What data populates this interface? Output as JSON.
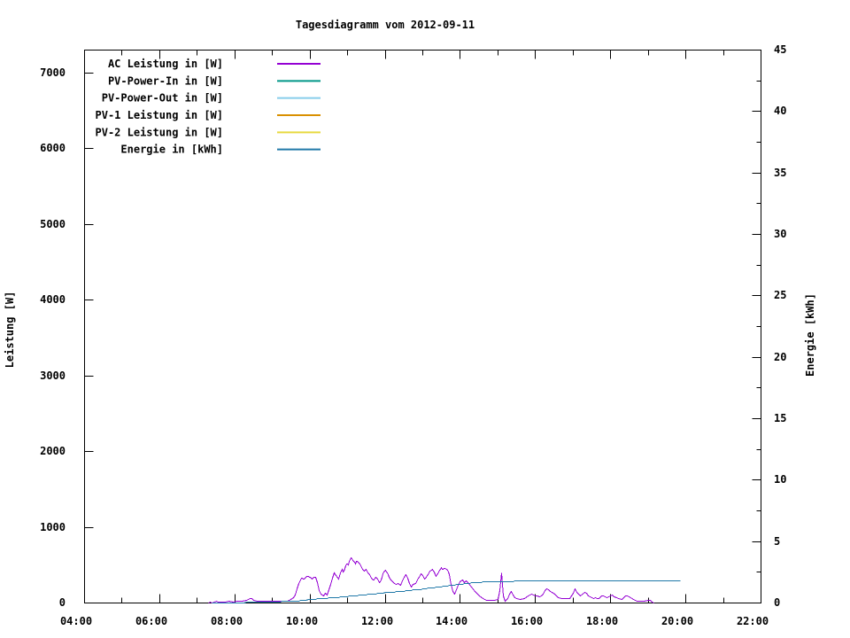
{
  "title": "Tagesdiagramm vom 2012-09-11",
  "axes": {
    "x": {
      "tick_labels": [
        "04:00",
        "06:00",
        "08:00",
        "10:00",
        "12:00",
        "14:00",
        "16:00",
        "18:00",
        "20:00",
        "22:00"
      ],
      "range_hours": [
        4,
        22
      ],
      "major_step_hours": 2,
      "minor_step_hours": 1
    },
    "y_left": {
      "label": "Leistung [W]",
      "tick_values": [
        0,
        1000,
        2000,
        3000,
        4000,
        5000,
        6000,
        7000
      ],
      "range": [
        0,
        7300
      ]
    },
    "y_right": {
      "label": "Energie [kWh]",
      "tick_values": [
        0,
        5,
        10,
        15,
        20,
        25,
        30,
        35,
        40,
        45
      ],
      "minor_step": 2.5,
      "range": [
        0,
        45
      ]
    }
  },
  "legend": [
    {
      "label": "AC Leistung in [W]",
      "color": "#9400d3"
    },
    {
      "label": "PV-Power-In in [W]",
      "color": "#009688"
    },
    {
      "label": "PV-Power-Out in [W]",
      "color": "#87ceeb"
    },
    {
      "label": "PV-1 Leistung in [W]",
      "color": "#d99000"
    },
    {
      "label": "PV-2 Leistung in [W]",
      "color": "#e8d940"
    },
    {
      "label": "Energie in [kWh]",
      "color": "#1f78a8"
    }
  ],
  "chart_data": {
    "type": "line",
    "title": "Tagesdiagramm vom 2012-09-11",
    "xlabel": "",
    "x_unit": "hour_of_day",
    "ylabel_left": "Leistung [W]",
    "ylabel_right": "Energie [kWh]",
    "x_range": [
      4,
      22
    ],
    "y_left_range": [
      0,
      7300
    ],
    "y_right_range": [
      0,
      45
    ],
    "grid": false,
    "legend_position": "top-left-inside",
    "series": [
      {
        "name": "AC Leistung in [W]",
        "axis": "left",
        "color": "#9400d3",
        "visible": true,
        "points": [
          [
            7.3,
            0
          ],
          [
            7.35,
            12
          ],
          [
            7.4,
            5
          ],
          [
            7.5,
            18
          ],
          [
            7.55,
            8
          ],
          [
            7.65,
            15
          ],
          [
            7.75,
            10
          ],
          [
            7.85,
            20
          ],
          [
            7.95,
            15
          ],
          [
            8.05,
            25
          ],
          [
            8.1,
            18
          ],
          [
            8.2,
            22
          ],
          [
            8.3,
            35
          ],
          [
            8.4,
            62
          ],
          [
            8.45,
            55
          ],
          [
            8.5,
            30
          ],
          [
            8.6,
            20
          ],
          [
            8.7,
            25
          ],
          [
            8.8,
            18
          ],
          [
            8.9,
            22
          ],
          [
            9.0,
            18
          ],
          [
            9.1,
            22
          ],
          [
            9.2,
            18
          ],
          [
            9.3,
            24
          ],
          [
            9.4,
            28
          ],
          [
            9.5,
            45
          ],
          [
            9.55,
            75
          ],
          [
            9.6,
            110
          ],
          [
            9.65,
            185
          ],
          [
            9.7,
            255
          ],
          [
            9.725,
            275
          ],
          [
            9.75,
            310
          ],
          [
            9.775,
            325
          ],
          [
            9.8,
            330
          ],
          [
            9.825,
            318
          ],
          [
            9.85,
            315
          ],
          [
            9.875,
            328
          ],
          [
            9.9,
            340
          ],
          [
            9.925,
            352
          ],
          [
            9.95,
            350
          ],
          [
            9.975,
            338
          ],
          [
            10.0,
            345
          ],
          [
            10.025,
            330
          ],
          [
            10.05,
            320
          ],
          [
            10.075,
            328
          ],
          [
            10.1,
            335
          ],
          [
            10.125,
            345
          ],
          [
            10.15,
            345
          ],
          [
            10.175,
            310
          ],
          [
            10.2,
            270
          ],
          [
            10.25,
            160
          ],
          [
            10.3,
            115
          ],
          [
            10.35,
            95
          ],
          [
            10.4,
            130
          ],
          [
            10.45,
            105
          ],
          [
            10.5,
            175
          ],
          [
            10.55,
            250
          ],
          [
            10.6,
            330
          ],
          [
            10.65,
            395
          ],
          [
            10.7,
            360
          ],
          [
            10.75,
            320
          ],
          [
            10.8,
            400
          ],
          [
            10.825,
            425
          ],
          [
            10.85,
            440
          ],
          [
            10.875,
            415
          ],
          [
            10.9,
            420
          ],
          [
            10.925,
            455
          ],
          [
            10.95,
            490
          ],
          [
            10.975,
            510
          ],
          [
            11.0,
            520
          ],
          [
            11.025,
            505
          ],
          [
            11.05,
            545
          ],
          [
            11.075,
            575
          ],
          [
            11.1,
            600
          ],
          [
            11.125,
            580
          ],
          [
            11.15,
            565
          ],
          [
            11.175,
            540
          ],
          [
            11.2,
            520
          ],
          [
            11.225,
            545
          ],
          [
            11.25,
            555
          ],
          [
            11.275,
            540
          ],
          [
            11.3,
            530
          ],
          [
            11.325,
            510
          ],
          [
            11.35,
            490
          ],
          [
            11.375,
            465
          ],
          [
            11.4,
            445
          ],
          [
            11.425,
            430
          ],
          [
            11.45,
            420
          ],
          [
            11.475,
            435
          ],
          [
            11.5,
            440
          ],
          [
            11.525,
            420
          ],
          [
            11.55,
            400
          ],
          [
            11.575,
            375
          ],
          [
            11.6,
            350
          ],
          [
            11.625,
            330
          ],
          [
            11.65,
            320
          ],
          [
            11.675,
            310
          ],
          [
            11.7,
            300
          ],
          [
            11.725,
            325
          ],
          [
            11.75,
            345
          ],
          [
            11.775,
            330
          ],
          [
            11.8,
            320
          ],
          [
            11.825,
            295
          ],
          [
            11.85,
            270
          ],
          [
            11.875,
            285
          ],
          [
            11.9,
            305
          ],
          [
            11.925,
            345
          ],
          [
            11.95,
            390
          ],
          [
            11.975,
            410
          ],
          [
            12.0,
            430
          ],
          [
            12.025,
            415
          ],
          [
            12.05,
            400
          ],
          [
            12.075,
            370
          ],
          [
            12.1,
            340
          ],
          [
            12.15,
            300
          ],
          [
            12.2,
            280
          ],
          [
            12.25,
            255
          ],
          [
            12.3,
            240
          ],
          [
            12.35,
            255
          ],
          [
            12.4,
            235
          ],
          [
            12.45,
            290
          ],
          [
            12.5,
            340
          ],
          [
            12.55,
            370
          ],
          [
            12.6,
            330
          ],
          [
            12.65,
            260
          ],
          [
            12.7,
            215
          ],
          [
            12.75,
            240
          ],
          [
            12.8,
            260
          ],
          [
            12.85,
            300
          ],
          [
            12.875,
            325
          ],
          [
            12.9,
            345
          ],
          [
            12.925,
            365
          ],
          [
            12.95,
            385
          ],
          [
            12.975,
            370
          ],
          [
            13.0,
            360
          ],
          [
            13.025,
            340
          ],
          [
            13.05,
            320
          ],
          [
            13.075,
            330
          ],
          [
            13.1,
            340
          ],
          [
            13.125,
            360
          ],
          [
            13.15,
            380
          ],
          [
            13.175,
            400
          ],
          [
            13.2,
            420
          ],
          [
            13.225,
            435
          ],
          [
            13.25,
            445
          ],
          [
            13.275,
            425
          ],
          [
            13.3,
            410
          ],
          [
            13.325,
            380
          ],
          [
            13.35,
            355
          ],
          [
            13.375,
            370
          ],
          [
            13.4,
            390
          ],
          [
            13.425,
            410
          ],
          [
            13.45,
            430
          ],
          [
            13.475,
            445
          ],
          [
            13.5,
            465
          ],
          [
            13.525,
            450
          ],
          [
            13.55,
            440
          ],
          [
            13.575,
            452
          ],
          [
            13.6,
            460
          ],
          [
            13.625,
            445
          ],
          [
            13.65,
            430
          ],
          [
            13.675,
            405
          ],
          [
            13.7,
            380
          ],
          [
            13.725,
            310
          ],
          [
            13.75,
            250
          ],
          [
            13.8,
            150
          ],
          [
            13.85,
            120
          ],
          [
            13.9,
            180
          ],
          [
            13.95,
            230
          ],
          [
            14.0,
            280
          ],
          [
            14.05,
            300
          ],
          [
            14.1,
            270
          ],
          [
            14.15,
            290
          ],
          [
            14.2,
            265
          ],
          [
            14.3,
            215
          ],
          [
            14.4,
            150
          ],
          [
            14.5,
            95
          ],
          [
            14.6,
            55
          ],
          [
            14.7,
            40
          ],
          [
            14.8,
            35
          ],
          [
            14.9,
            30
          ],
          [
            15.0,
            45
          ],
          [
            15.05,
            160
          ],
          [
            15.1,
            400
          ],
          [
            15.15,
            90
          ],
          [
            15.2,
            25
          ],
          [
            15.25,
            60
          ],
          [
            15.3,
            120
          ],
          [
            15.35,
            150
          ],
          [
            15.4,
            110
          ],
          [
            15.45,
            65
          ],
          [
            15.5,
            55
          ],
          [
            15.6,
            50
          ],
          [
            15.7,
            60
          ],
          [
            15.8,
            90
          ],
          [
            15.85,
            100
          ],
          [
            15.9,
            112
          ],
          [
            16.0,
            98
          ],
          [
            16.05,
            88
          ],
          [
            16.1,
            78
          ],
          [
            16.15,
            95
          ],
          [
            16.2,
            118
          ],
          [
            16.25,
            165
          ],
          [
            16.3,
            182
          ],
          [
            16.35,
            172
          ],
          [
            16.4,
            152
          ],
          [
            16.45,
            135
          ],
          [
            16.5,
            115
          ],
          [
            16.6,
            68
          ],
          [
            16.7,
            58
          ],
          [
            16.8,
            58
          ],
          [
            16.9,
            64
          ],
          [
            17.0,
            125
          ],
          [
            17.05,
            185
          ],
          [
            17.1,
            145
          ],
          [
            17.2,
            88
          ],
          [
            17.3,
            142
          ],
          [
            17.35,
            128
          ],
          [
            17.4,
            98
          ],
          [
            17.5,
            72
          ],
          [
            17.55,
            62
          ],
          [
            17.6,
            68
          ],
          [
            17.65,
            62
          ],
          [
            17.7,
            58
          ],
          [
            17.75,
            88
          ],
          [
            17.8,
            98
          ],
          [
            17.9,
            68
          ],
          [
            18.0,
            92
          ],
          [
            18.05,
            108
          ],
          [
            18.1,
            78
          ],
          [
            18.15,
            70
          ],
          [
            18.2,
            58
          ],
          [
            18.3,
            52
          ],
          [
            18.35,
            68
          ],
          [
            18.4,
            88
          ],
          [
            18.45,
            98
          ],
          [
            18.5,
            78
          ],
          [
            18.6,
            52
          ],
          [
            18.7,
            28
          ],
          [
            18.8,
            22
          ],
          [
            18.9,
            18
          ],
          [
            19.0,
            38
          ],
          [
            19.05,
            30
          ],
          [
            19.1,
            12
          ],
          [
            19.15,
            0
          ]
        ]
      },
      {
        "name": "PV-Power-In in [W]",
        "axis": "left",
        "color": "#009688",
        "visible": false,
        "points": []
      },
      {
        "name": "PV-Power-Out in [W]",
        "axis": "left",
        "color": "#87ceeb",
        "visible": false,
        "points": []
      },
      {
        "name": "PV-1 Leistung in [W]",
        "axis": "left",
        "color": "#d99000",
        "visible": false,
        "points": []
      },
      {
        "name": "PV-2 Leistung in [W]",
        "axis": "left",
        "color": "#e8d940",
        "visible": false,
        "points": []
      },
      {
        "name": "Energie in [kWh]",
        "axis": "right",
        "color": "#1f78a8",
        "visible": true,
        "step_render": true,
        "points": [
          [
            7.4,
            0
          ],
          [
            8.0,
            0.02
          ],
          [
            8.5,
            0.05
          ],
          [
            9.0,
            0.09
          ],
          [
            9.5,
            0.13
          ],
          [
            9.8,
            0.2
          ],
          [
            10.0,
            0.28
          ],
          [
            10.25,
            0.34
          ],
          [
            10.5,
            0.4
          ],
          [
            10.75,
            0.46
          ],
          [
            11.0,
            0.53
          ],
          [
            11.25,
            0.6
          ],
          [
            11.5,
            0.67
          ],
          [
            11.75,
            0.75
          ],
          [
            12.0,
            0.83
          ],
          [
            12.25,
            0.9
          ],
          [
            12.5,
            0.97
          ],
          [
            12.75,
            1.05
          ],
          [
            13.0,
            1.13
          ],
          [
            13.25,
            1.23
          ],
          [
            13.5,
            1.33
          ],
          [
            13.75,
            1.43
          ],
          [
            14.0,
            1.52
          ],
          [
            14.2,
            1.6
          ],
          [
            14.4,
            1.66
          ],
          [
            14.6,
            1.7
          ],
          [
            14.8,
            1.72
          ],
          [
            15.0,
            1.74
          ],
          [
            15.25,
            1.76
          ],
          [
            15.5,
            1.77
          ],
          [
            16.0,
            1.79
          ],
          [
            16.5,
            1.8
          ],
          [
            17.0,
            1.81
          ],
          [
            17.5,
            1.81
          ],
          [
            18.0,
            1.82
          ],
          [
            18.5,
            1.82
          ],
          [
            19.0,
            1.82
          ],
          [
            19.85,
            1.82
          ]
        ]
      }
    ]
  }
}
